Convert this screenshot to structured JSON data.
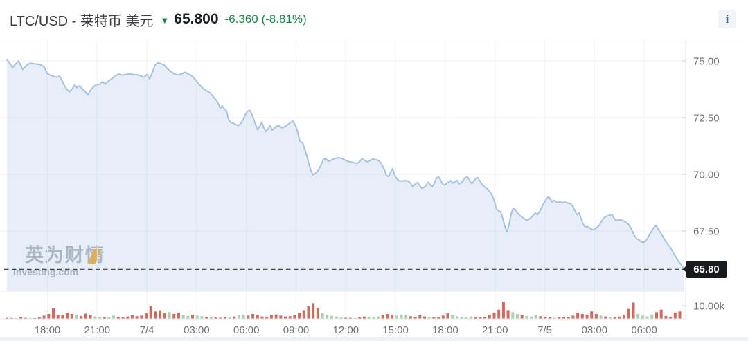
{
  "header": {
    "title": "LTC/USD - 莱特币 美元",
    "arrow": "▼",
    "price": "65.800",
    "change": "-6.360 (-8.81%)",
    "info_label": "i"
  },
  "watermark": {
    "cn": "英为财情",
    "en": "Investing.com"
  },
  "palette": {
    "down_green": "#1a8442",
    "price_line": "#a7c2e0",
    "area_fill": "#a7c2e0",
    "vol_red": "#cf6a5d",
    "vol_green": "#a9cfae",
    "badge_bg": "#17191c",
    "dash_line": "#43464a",
    "gridline": "#f1f2f4",
    "axis_line": "#e5e7ea",
    "tick": "#c9cbce",
    "label": "#6f7378",
    "watermark_orange": "#f6a21e"
  },
  "chart_data": {
    "type": "area",
    "symbol": "LTC/USD",
    "title": "LTC/USD - 莱特币 美元",
    "last_price": 65.8,
    "change": -6.36,
    "change_pct": -8.81,
    "ylim": [
      64.9,
      75.9
    ],
    "grid": true,
    "y_axis": {
      "labels": [
        "75.00",
        "72.50",
        "70.00",
        "67.50"
      ],
      "values": [
        75.0,
        72.5,
        70.0,
        67.5
      ],
      "current_label": "65.80"
    },
    "volume_axis_label": "10.00k",
    "volume_unit": "k",
    "x_axis": {
      "labels": [
        "18:00",
        "21:00",
        "7/4",
        "03:00",
        "06:00",
        "09:00",
        "12:00",
        "15:00",
        "18:00",
        "21:00",
        "7/5",
        "03:00",
        "06:00"
      ]
    },
    "price_points": [
      [
        10,
        75.05
      ],
      [
        14,
        74.9
      ],
      [
        18,
        74.7
      ],
      [
        23,
        74.88
      ],
      [
        27,
        75.0
      ],
      [
        30,
        74.8
      ],
      [
        33,
        74.62
      ],
      [
        37,
        74.75
      ],
      [
        40,
        74.85
      ],
      [
        45,
        74.9
      ],
      [
        50,
        74.87
      ],
      [
        55,
        74.85
      ],
      [
        60,
        74.82
      ],
      [
        64,
        74.72
      ],
      [
        68,
        74.45
      ],
      [
        72,
        74.38
      ],
      [
        77,
        74.32
      ],
      [
        82,
        74.28
      ],
      [
        86,
        74.33
      ],
      [
        90,
        74.1
      ],
      [
        94,
        73.85
      ],
      [
        98,
        73.7
      ],
      [
        100,
        73.63
      ],
      [
        104,
        73.75
      ],
      [
        108,
        73.95
      ],
      [
        111,
        73.82
      ],
      [
        115,
        73.9
      ],
      [
        119,
        73.75
      ],
      [
        123,
        73.65
      ],
      [
        127,
        73.5
      ],
      [
        131,
        73.72
      ],
      [
        135,
        73.85
      ],
      [
        139,
        73.95
      ],
      [
        144,
        73.97
      ],
      [
        148,
        74.08
      ],
      [
        152,
        73.98
      ],
      [
        156,
        74.1
      ],
      [
        161,
        74.2
      ],
      [
        166,
        74.32
      ],
      [
        171,
        74.42
      ],
      [
        176,
        74.37
      ],
      [
        181,
        74.4
      ],
      [
        187,
        74.42
      ],
      [
        193,
        74.4
      ],
      [
        199,
        74.38
      ],
      [
        204,
        74.33
      ],
      [
        208,
        74.28
      ],
      [
        212,
        74.4
      ],
      [
        216,
        74.2
      ],
      [
        220,
        74.5
      ],
      [
        224,
        74.82
      ],
      [
        228,
        74.92
      ],
      [
        232,
        74.88
      ],
      [
        237,
        74.82
      ],
      [
        242,
        74.65
      ],
      [
        247,
        74.52
      ],
      [
        252,
        74.42
      ],
      [
        257,
        74.38
      ],
      [
        262,
        74.42
      ],
      [
        267,
        74.5
      ],
      [
        271,
        74.44
      ],
      [
        276,
        74.36
      ],
      [
        280,
        74.25
      ],
      [
        284,
        74.1
      ],
      [
        288,
        73.95
      ],
      [
        292,
        73.82
      ],
      [
        296,
        73.72
      ],
      [
        300,
        73.65
      ],
      [
        304,
        73.58
      ],
      [
        308,
        73.42
      ],
      [
        312,
        73.28
      ],
      [
        315,
        73.12
      ],
      [
        318,
        72.92
      ],
      [
        321,
        73.02
      ],
      [
        324,
        72.88
      ],
      [
        327,
        72.8
      ],
      [
        330,
        72.42
      ],
      [
        333,
        72.3
      ],
      [
        336,
        72.26
      ],
      [
        340,
        72.2
      ],
      [
        344,
        72.15
      ],
      [
        347,
        72.22
      ],
      [
        350,
        72.35
      ],
      [
        354,
        72.62
      ],
      [
        358,
        72.8
      ],
      [
        361,
        72.82
      ],
      [
        365,
        72.55
      ],
      [
        368,
        72.28
      ],
      [
        372,
        71.96
      ],
      [
        375,
        72.12
      ],
      [
        378,
        72.3
      ],
      [
        381,
        72.05
      ],
      [
        384,
        71.88
      ],
      [
        387,
        72.0
      ],
      [
        390,
        72.15
      ],
      [
        393,
        71.95
      ],
      [
        396,
        72.02
      ],
      [
        399,
        72.12
      ],
      [
        403,
        72.15
      ],
      [
        407,
        72.05
      ],
      [
        411,
        72.1
      ],
      [
        415,
        72.18
      ],
      [
        419,
        72.28
      ],
      [
        423,
        72.35
      ],
      [
        426,
        72.18
      ],
      [
        429,
        71.95
      ],
      [
        433,
        71.45
      ],
      [
        437,
        71.38
      ],
      [
        440,
        71.1
      ],
      [
        443,
        70.82
      ],
      [
        446,
        70.45
      ],
      [
        449,
        70.15
      ],
      [
        452,
        69.97
      ],
      [
        456,
        70.05
      ],
      [
        460,
        70.2
      ],
      [
        464,
        70.45
      ],
      [
        467,
        70.65
      ],
      [
        470,
        70.7
      ],
      [
        474,
        70.58
      ],
      [
        478,
        70.62
      ],
      [
        482,
        70.68
      ],
      [
        486,
        70.72
      ],
      [
        490,
        70.73
      ],
      [
        495,
        70.68
      ],
      [
        500,
        70.6
      ],
      [
        505,
        70.55
      ],
      [
        510,
        70.52
      ],
      [
        515,
        70.48
      ],
      [
        519,
        70.55
      ],
      [
        523,
        70.7
      ],
      [
        527,
        70.6
      ],
      [
        531,
        70.55
      ],
      [
        535,
        70.62
      ],
      [
        539,
        70.68
      ],
      [
        543,
        70.64
      ],
      [
        547,
        70.6
      ],
      [
        551,
        70.45
      ],
      [
        555,
        70.2
      ],
      [
        558,
        69.95
      ],
      [
        561,
        69.9
      ],
      [
        564,
        70.1
      ],
      [
        567,
        70.25
      ],
      [
        570,
        69.95
      ],
      [
        573,
        69.8
      ],
      [
        577,
        69.7
      ],
      [
        581,
        69.7
      ],
      [
        585,
        69.72
      ],
      [
        589,
        69.71
      ],
      [
        593,
        69.6
      ],
      [
        596,
        69.45
      ],
      [
        600,
        69.58
      ],
      [
        603,
        69.64
      ],
      [
        606,
        69.5
      ],
      [
        609,
        69.38
      ],
      [
        612,
        69.42
      ],
      [
        615,
        69.5
      ],
      [
        618,
        69.65
      ],
      [
        621,
        69.55
      ],
      [
        624,
        69.45
      ],
      [
        627,
        69.6
      ],
      [
        630,
        69.82
      ],
      [
        633,
        69.9
      ],
      [
        636,
        69.75
      ],
      [
        639,
        69.58
      ],
      [
        642,
        69.52
      ],
      [
        645,
        69.6
      ],
      [
        648,
        69.66
      ],
      [
        651,
        69.72
      ],
      [
        654,
        69.6
      ],
      [
        657,
        69.68
      ],
      [
        660,
        69.73
      ],
      [
        663,
        69.58
      ],
      [
        666,
        69.62
      ],
      [
        669,
        69.75
      ],
      [
        672,
        69.86
      ],
      [
        675,
        69.88
      ],
      [
        678,
        69.74
      ],
      [
        681,
        69.6
      ],
      [
        684,
        69.68
      ],
      [
        687,
        69.82
      ],
      [
        690,
        69.85
      ],
      [
        693,
        69.7
      ],
      [
        696,
        69.55
      ],
      [
        699,
        69.46
      ],
      [
        702,
        69.4
      ],
      [
        705,
        69.32
      ],
      [
        708,
        69.2
      ],
      [
        711,
        69.05
      ],
      [
        714,
        68.8
      ],
      [
        717,
        68.45
      ],
      [
        720,
        68.38
      ],
      [
        723,
        68.34
      ],
      [
        726,
        68.05
      ],
      [
        729,
        67.7
      ],
      [
        732,
        67.46
      ],
      [
        735,
        67.8
      ],
      [
        738,
        68.25
      ],
      [
        741,
        68.5
      ],
      [
        744,
        68.45
      ],
      [
        747,
        68.3
      ],
      [
        750,
        68.2
      ],
      [
        754,
        68.1
      ],
      [
        758,
        68.02
      ],
      [
        761,
        67.98
      ],
      [
        764,
        68.02
      ],
      [
        767,
        68.1
      ],
      [
        770,
        68.2
      ],
      [
        773,
        68.3
      ],
      [
        776,
        68.22
      ],
      [
        779,
        68.35
      ],
      [
        782,
        68.55
      ],
      [
        785,
        68.72
      ],
      [
        788,
        68.88
      ],
      [
        791,
        69.0
      ],
      [
        794,
        68.95
      ],
      [
        797,
        68.78
      ],
      [
        800,
        68.85
      ],
      [
        803,
        68.78
      ],
      [
        806,
        68.76
      ],
      [
        809,
        68.8
      ],
      [
        812,
        68.74
      ],
      [
        815,
        68.78
      ],
      [
        818,
        68.76
      ],
      [
        821,
        68.72
      ],
      [
        824,
        68.7
      ],
      [
        827,
        68.6
      ],
      [
        830,
        68.4
      ],
      [
        833,
        68.22
      ],
      [
        836,
        68.3
      ],
      [
        839,
        68.05
      ],
      [
        842,
        67.8
      ],
      [
        845,
        67.68
      ],
      [
        848,
        67.7
      ],
      [
        851,
        67.63
      ],
      [
        854,
        67.58
      ],
      [
        857,
        67.55
      ],
      [
        860,
        67.62
      ],
      [
        863,
        67.68
      ],
      [
        866,
        67.78
      ],
      [
        869,
        67.95
      ],
      [
        872,
        68.08
      ],
      [
        875,
        68.14
      ],
      [
        878,
        68.18
      ],
      [
        881,
        68.2
      ],
      [
        884,
        68.22
      ],
      [
        887,
        68.04
      ],
      [
        890,
        67.96
      ],
      [
        893,
        68.0
      ],
      [
        896,
        67.99
      ],
      [
        899,
        67.97
      ],
      [
        902,
        67.92
      ],
      [
        905,
        67.85
      ],
      [
        908,
        67.78
      ],
      [
        911,
        67.62
      ],
      [
        914,
        67.42
      ],
      [
        917,
        67.25
      ],
      [
        920,
        67.15
      ],
      [
        923,
        67.1
      ],
      [
        926,
        67.02
      ],
      [
        929,
        67.0
      ],
      [
        932,
        67.06
      ],
      [
        935,
        67.18
      ],
      [
        938,
        67.35
      ],
      [
        941,
        67.5
      ],
      [
        944,
        67.65
      ],
      [
        947,
        67.75
      ],
      [
        950,
        67.6
      ],
      [
        953,
        67.45
      ],
      [
        956,
        67.32
      ],
      [
        959,
        67.15
      ],
      [
        962,
        67.0
      ],
      [
        965,
        66.88
      ],
      [
        968,
        66.78
      ],
      [
        971,
        66.6
      ],
      [
        974,
        66.45
      ],
      [
        977,
        66.3
      ],
      [
        980,
        66.15
      ],
      [
        984,
        66.0
      ],
      [
        988,
        65.8
      ]
    ],
    "volume_bars": [
      [
        0.5,
        "r"
      ],
      [
        0.4,
        "r"
      ],
      [
        0.3,
        "g"
      ],
      [
        0.8,
        "r"
      ],
      [
        0.5,
        "r"
      ],
      [
        0.4,
        "g"
      ],
      [
        0.3,
        "r"
      ],
      [
        0.9,
        "r"
      ],
      [
        2.2,
        "r"
      ],
      [
        3.5,
        "r"
      ],
      [
        8,
        "r"
      ],
      [
        3,
        "r"
      ],
      [
        2.5,
        "r"
      ],
      [
        4.5,
        "r"
      ],
      [
        3.5,
        "r"
      ],
      [
        2.5,
        "g"
      ],
      [
        2,
        "r"
      ],
      [
        3.8,
        "r"
      ],
      [
        2.8,
        "r"
      ],
      [
        1.5,
        "g"
      ],
      [
        1.2,
        "g"
      ],
      [
        1,
        "r"
      ],
      [
        0.8,
        "g"
      ],
      [
        2.2,
        "g"
      ],
      [
        1.2,
        "r"
      ],
      [
        0.8,
        "r"
      ],
      [
        1.5,
        "r"
      ],
      [
        2.5,
        "r"
      ],
      [
        1.8,
        "r"
      ],
      [
        2.2,
        "r"
      ],
      [
        4,
        "r"
      ],
      [
        10,
        "r"
      ],
      [
        5.5,
        "r"
      ],
      [
        6.5,
        "r"
      ],
      [
        4,
        "r"
      ],
      [
        5,
        "g"
      ],
      [
        3.5,
        "r"
      ],
      [
        4.5,
        "r"
      ],
      [
        2.5,
        "g"
      ],
      [
        2,
        "g"
      ],
      [
        2.8,
        "r"
      ],
      [
        2.2,
        "g"
      ],
      [
        1.8,
        "g"
      ],
      [
        1.2,
        "r"
      ],
      [
        1,
        "g"
      ],
      [
        0.8,
        "r"
      ],
      [
        0.6,
        "r"
      ],
      [
        1,
        "r"
      ],
      [
        0.8,
        "g"
      ],
      [
        1.5,
        "r"
      ],
      [
        2.5,
        "g"
      ],
      [
        3,
        "g"
      ],
      [
        2.2,
        "r"
      ],
      [
        3.5,
        "r"
      ],
      [
        2.8,
        "r"
      ],
      [
        1.5,
        "r"
      ],
      [
        1.2,
        "r"
      ],
      [
        2.5,
        "r"
      ],
      [
        3.2,
        "r"
      ],
      [
        2.2,
        "r"
      ],
      [
        1.5,
        "r"
      ],
      [
        1.8,
        "r"
      ],
      [
        2.5,
        "r"
      ],
      [
        4.5,
        "r"
      ],
      [
        6.5,
        "r"
      ],
      [
        9.5,
        "r"
      ],
      [
        12,
        "r"
      ],
      [
        8,
        "r"
      ],
      [
        4,
        "g"
      ],
      [
        2.5,
        "g"
      ],
      [
        2,
        "g"
      ],
      [
        1.5,
        "g"
      ],
      [
        0.8,
        "g"
      ],
      [
        0.6,
        "r"
      ],
      [
        0.5,
        "r"
      ],
      [
        0.4,
        "g"
      ],
      [
        0.8,
        "r"
      ],
      [
        1.5,
        "r"
      ],
      [
        1.2,
        "g"
      ],
      [
        1,
        "g"
      ],
      [
        1.5,
        "g"
      ],
      [
        2.5,
        "r"
      ],
      [
        3.5,
        "r"
      ],
      [
        2.8,
        "r"
      ],
      [
        2.2,
        "g"
      ],
      [
        3,
        "g"
      ],
      [
        2.5,
        "g"
      ],
      [
        1.8,
        "r"
      ],
      [
        1.2,
        "r"
      ],
      [
        2.8,
        "r"
      ],
      [
        1.5,
        "r"
      ],
      [
        1.2,
        "g"
      ],
      [
        0.8,
        "r"
      ],
      [
        1,
        "r"
      ],
      [
        2.2,
        "r"
      ],
      [
        4,
        "r"
      ],
      [
        2.5,
        "g"
      ],
      [
        1.8,
        "g"
      ],
      [
        1.2,
        "g"
      ],
      [
        0.8,
        "g"
      ],
      [
        1.5,
        "g"
      ],
      [
        1,
        "r"
      ],
      [
        0.8,
        "r"
      ],
      [
        1.2,
        "r"
      ],
      [
        2.5,
        "r"
      ],
      [
        4.5,
        "r"
      ],
      [
        7,
        "r"
      ],
      [
        13,
        "r"
      ],
      [
        6.5,
        "r"
      ],
      [
        5,
        "g"
      ],
      [
        3.5,
        "g"
      ],
      [
        2.5,
        "r"
      ],
      [
        2,
        "g"
      ],
      [
        1.5,
        "g"
      ],
      [
        2.8,
        "g"
      ],
      [
        1.8,
        "r"
      ],
      [
        1.2,
        "r"
      ],
      [
        0.8,
        "r"
      ],
      [
        0.6,
        "g"
      ],
      [
        1,
        "r"
      ],
      [
        0.8,
        "r"
      ],
      [
        1.2,
        "r"
      ],
      [
        2.2,
        "r"
      ],
      [
        4.5,
        "r"
      ],
      [
        3.5,
        "r"
      ],
      [
        2.8,
        "r"
      ],
      [
        5.5,
        "r"
      ],
      [
        3.5,
        "r"
      ],
      [
        2.2,
        "g"
      ],
      [
        1.5,
        "r"
      ],
      [
        1.2,
        "g"
      ],
      [
        0.8,
        "r"
      ],
      [
        1.5,
        "r"
      ],
      [
        2.5,
        "r"
      ],
      [
        7.5,
        "r"
      ],
      [
        12.5,
        "r"
      ],
      [
        3.5,
        "g"
      ],
      [
        2.2,
        "g"
      ],
      [
        1.5,
        "g"
      ],
      [
        3,
        "g"
      ],
      [
        5,
        "r"
      ],
      [
        7,
        "r"
      ],
      [
        2,
        "r"
      ],
      [
        1.2,
        "r"
      ],
      [
        4.5,
        "r"
      ],
      [
        5.5,
        "r"
      ]
    ]
  }
}
